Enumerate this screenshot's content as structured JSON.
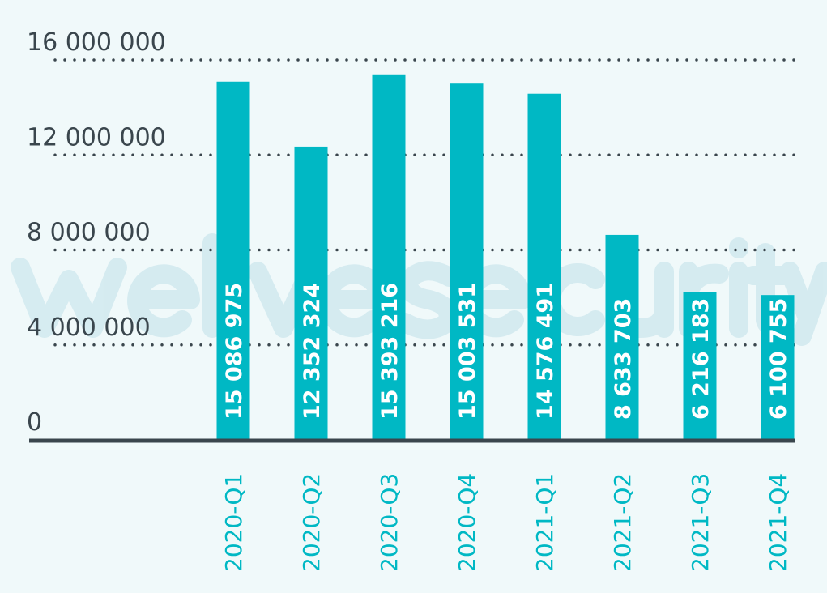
{
  "watermark": "welivesecurity",
  "colors": {
    "bar": "#00b8c4",
    "axis": "#3a464d",
    "grid": "#3a464d",
    "background": "#f0f9fa",
    "category_label": "#00b8c4",
    "value_label": "#ffffff"
  },
  "chart_data": {
    "type": "bar",
    "title": "",
    "xlabel": "",
    "ylabel": "",
    "categories": [
      "2020-Q1",
      "2020-Q2",
      "2020-Q3",
      "2020-Q4",
      "2021-Q1",
      "2021-Q2",
      "2021-Q3",
      "2021-Q4"
    ],
    "values": [
      15086975,
      12352324,
      15393216,
      15003531,
      14576491,
      8633703,
      6216183,
      6100755
    ],
    "value_labels": [
      "15 086 975",
      "12 352 324",
      "15 393 216",
      "15 003 531",
      "14 576 491",
      "8 633 703",
      "6 216 183",
      "6 100 755"
    ],
    "yticks": [
      0,
      4000000,
      8000000,
      12000000,
      16000000
    ],
    "ytick_labels": [
      "0",
      "4 000 000",
      "8 000 000",
      "12 000 000",
      "16 000 000"
    ],
    "ylim": [
      0,
      16000000
    ],
    "grid": "horizontal dotted",
    "category_label_orientation": "vertical",
    "value_label_placement": "inside bar, vertical"
  }
}
